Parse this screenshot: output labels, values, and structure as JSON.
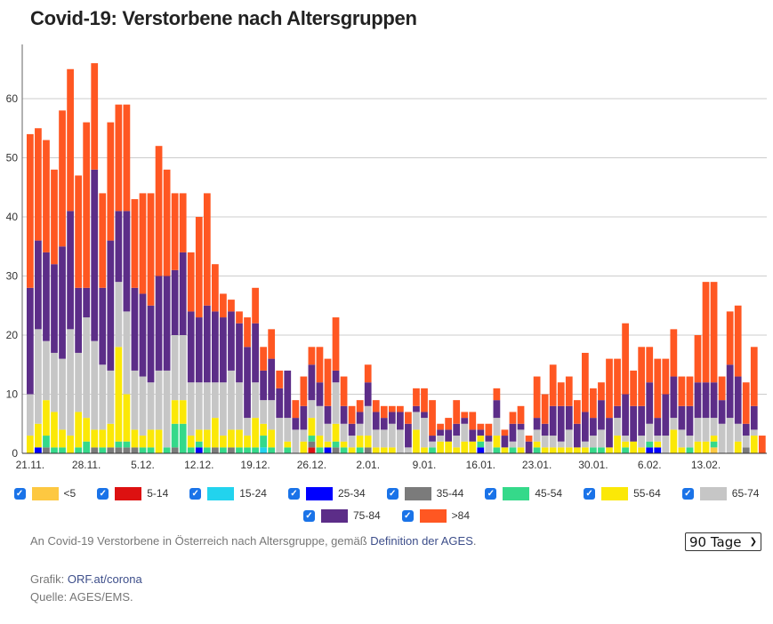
{
  "title": "Covid-19: Verstorbene nach Altersgruppen",
  "chart_data": {
    "type": "bar",
    "stacked": true,
    "title": "Covid-19: Verstorbene nach Altersgruppen",
    "xlabel": "",
    "ylabel": "",
    "ylim": [
      0,
      68
    ],
    "yticks": [
      0,
      10,
      20,
      30,
      40,
      50,
      60
    ],
    "grid": true,
    "legend_position": "bottom",
    "x_tick_labels": [
      "21.11.",
      "28.11.",
      "5.12.",
      "12.12.",
      "19.12.",
      "26.12.",
      "2.01.",
      "9.01.",
      "16.01.",
      "23.01.",
      "30.01.",
      "6.02.",
      "13.02."
    ],
    "x_tick_every": 7,
    "series": [
      {
        "name": "<5",
        "color": "#fdc841"
      },
      {
        "name": "5-14",
        "color": "#dd1111"
      },
      {
        "name": "15-24",
        "color": "#22d3ee"
      },
      {
        "name": "25-34",
        "color": "#0000ff"
      },
      {
        "name": "35-44",
        "color": "#7b7b7b"
      },
      {
        "name": "45-54",
        "color": "#35d98a"
      },
      {
        "name": "55-64",
        "color": "#fbe807"
      },
      {
        "name": "65-74",
        "color": "#c6c6c6"
      },
      {
        "name": "75-84",
        "color": "#5c2d88"
      },
      {
        "name": ">84",
        "color": "#ff5722"
      }
    ],
    "days": [
      [
        0,
        0,
        0,
        0,
        0,
        0,
        3,
        7,
        18,
        26
      ],
      [
        0,
        0,
        0,
        1,
        0,
        0,
        4,
        16,
        15,
        19
      ],
      [
        0,
        0,
        0,
        0,
        1,
        2,
        6,
        10,
        15,
        19
      ],
      [
        0,
        0,
        0,
        0,
        0,
        1,
        6,
        10,
        15,
        16
      ],
      [
        0,
        0,
        0,
        0,
        0,
        1,
        3,
        12,
        19,
        23
      ],
      [
        0,
        0,
        0,
        0,
        0,
        0,
        3,
        18,
        20,
        24
      ],
      [
        0,
        0,
        0,
        0,
        0,
        1,
        6,
        10,
        11,
        19
      ],
      [
        0,
        0,
        0,
        0,
        0,
        2,
        4,
        17,
        5,
        28
      ],
      [
        0,
        0,
        0,
        0,
        1,
        0,
        3,
        15,
        29,
        18
      ],
      [
        0,
        0,
        0,
        0,
        0,
        1,
        3,
        11,
        13,
        16
      ],
      [
        0,
        0,
        0,
        0,
        1,
        0,
        4,
        9,
        22,
        20
      ],
      [
        0,
        0,
        0,
        0,
        1,
        1,
        16,
        11,
        12,
        18
      ],
      [
        0,
        0,
        0,
        0,
        1,
        1,
        8,
        14,
        17,
        18
      ],
      [
        0,
        0,
        0,
        0,
        1,
        0,
        3,
        10,
        14,
        15
      ],
      [
        0,
        0,
        0,
        0,
        0,
        1,
        2,
        10,
        14,
        17
      ],
      [
        0,
        0,
        0,
        0,
        0,
        1,
        3,
        8,
        13,
        19
      ],
      [
        0,
        0,
        0,
        0,
        0,
        0,
        4,
        10,
        16,
        22
      ],
      [
        0,
        0,
        0,
        0,
        0,
        1,
        0,
        13,
        16,
        18
      ],
      [
        0,
        0,
        0,
        0,
        1,
        4,
        4,
        11,
        11,
        13
      ],
      [
        0,
        0,
        0,
        0,
        0,
        5,
        4,
        11,
        14,
        10
      ],
      [
        0,
        0,
        0,
        0,
        0,
        1,
        2,
        9,
        12,
        10
      ],
      [
        0,
        0,
        0,
        1,
        0,
        1,
        2,
        8,
        11,
        17
      ],
      [
        0,
        0,
        0,
        0,
        0,
        1,
        3,
        8,
        13,
        19
      ],
      [
        0,
        0,
        0,
        0,
        1,
        0,
        5,
        6,
        12,
        8
      ],
      [
        0,
        0,
        0,
        0,
        0,
        1,
        2,
        9,
        11,
        4
      ],
      [
        0,
        0,
        0,
        0,
        1,
        0,
        3,
        10,
        10,
        2
      ],
      [
        0,
        0,
        0,
        0,
        0,
        1,
        3,
        8,
        10,
        2
      ],
      [
        0,
        0,
        0,
        0,
        0,
        1,
        2,
        3,
        12,
        5
      ],
      [
        0,
        0,
        0,
        0,
        0,
        1,
        5,
        6,
        10,
        6
      ],
      [
        0,
        0,
        1,
        0,
        0,
        2,
        2,
        4,
        5,
        4
      ],
      [
        0,
        0,
        0,
        0,
        0,
        1,
        3,
        5,
        7,
        5
      ],
      [
        0,
        0,
        0,
        0,
        0,
        0,
        0,
        6,
        5,
        3
      ],
      [
        0,
        0,
        0,
        0,
        0,
        1,
        1,
        4,
        8,
        0
      ],
      [
        0,
        0,
        0,
        0,
        0,
        0,
        0,
        4,
        2,
        3
      ],
      [
        0,
        0,
        0,
        0,
        0,
        0,
        2,
        2,
        4,
        5
      ],
      [
        0,
        1,
        0,
        0,
        1,
        1,
        3,
        3,
        6,
        3
      ],
      [
        0,
        0,
        0,
        0,
        0,
        1,
        2,
        5,
        4,
        6
      ],
      [
        0,
        0,
        0,
        1,
        0,
        0,
        1,
        3,
        3,
        8
      ],
      [
        0,
        0,
        0,
        0,
        1,
        1,
        3,
        7,
        2,
        9
      ],
      [
        0,
        0,
        0,
        0,
        0,
        1,
        1,
        3,
        3,
        5
      ],
      [
        0,
        0,
        0,
        0,
        0,
        0,
        1,
        2,
        2,
        3
      ],
      [
        0,
        0,
        0,
        0,
        0,
        1,
        2,
        2,
        2,
        2
      ],
      [
        0,
        0,
        0,
        0,
        1,
        0,
        2,
        5,
        4,
        3
      ],
      [
        0,
        0,
        0,
        0,
        0,
        0,
        1,
        3,
        3,
        2
      ],
      [
        0,
        0,
        0,
        0,
        0,
        0,
        1,
        3,
        2,
        2
      ],
      [
        0,
        0,
        0,
        0,
        0,
        0,
        1,
        4,
        2,
        1
      ],
      [
        0,
        0,
        0,
        0,
        0,
        0,
        0,
        4,
        3,
        1
      ],
      [
        0,
        0,
        0,
        0,
        0,
        0,
        0,
        1,
        4,
        2
      ],
      [
        0,
        0,
        0,
        0,
        0,
        0,
        4,
        3,
        1,
        3
      ],
      [
        0,
        0,
        0,
        0,
        0,
        0,
        1,
        5,
        1,
        4
      ],
      [
        0,
        0,
        0,
        0,
        0,
        1,
        0,
        1,
        1,
        6
      ],
      [
        0,
        0,
        0,
        0,
        0,
        0,
        2,
        1,
        1,
        1
      ],
      [
        0,
        0,
        0,
        0,
        0,
        0,
        2,
        0,
        2,
        2
      ],
      [
        0,
        0,
        0,
        0,
        0,
        0,
        1,
        2,
        2,
        4
      ],
      [
        0,
        0,
        0,
        0,
        0,
        0,
        2,
        3,
        1,
        1
      ],
      [
        0,
        0,
        0,
        0,
        0,
        0,
        2,
        0,
        2,
        3
      ],
      [
        0,
        0,
        0,
        1,
        0,
        1,
        1,
        0,
        1,
        1
      ],
      [
        0,
        0,
        0,
        0,
        0,
        0,
        0,
        2,
        1,
        2
      ],
      [
        0,
        0,
        0,
        0,
        0,
        1,
        2,
        3,
        3,
        2
      ],
      [
        0,
        0,
        0,
        0,
        0,
        0,
        1,
        0,
        2,
        1
      ],
      [
        0,
        0,
        0,
        0,
        0,
        1,
        0,
        1,
        3,
        2
      ],
      [
        0,
        0,
        0,
        0,
        0,
        0,
        1,
        3,
        1,
        3
      ],
      [
        0,
        0,
        0,
        0,
        0,
        0,
        0,
        0,
        2,
        1
      ],
      [
        0,
        0,
        0,
        0,
        0,
        1,
        1,
        2,
        2,
        7
      ],
      [
        0,
        0,
        0,
        0,
        0,
        0,
        1,
        2,
        2,
        5
      ],
      [
        0,
        0,
        0,
        0,
        0,
        0,
        1,
        2,
        5,
        7
      ],
      [
        0,
        0,
        0,
        0,
        0,
        0,
        1,
        1,
        6,
        4
      ],
      [
        0,
        0,
        0,
        0,
        0,
        0,
        1,
        3,
        4,
        5
      ],
      [
        0,
        0,
        0,
        0,
        0,
        0,
        1,
        0,
        4,
        4
      ],
      [
        0,
        0,
        0,
        0,
        0,
        0,
        1,
        1,
        5,
        10
      ],
      [
        0,
        0,
        0,
        0,
        0,
        1,
        0,
        2,
        3,
        5
      ],
      [
        0,
        0,
        0,
        0,
        0,
        1,
        0,
        3,
        5,
        3
      ],
      [
        0,
        0,
        0,
        0,
        0,
        0,
        1,
        0,
        5,
        10
      ],
      [
        0,
        0,
        0,
        0,
        0,
        0,
        3,
        3,
        2,
        8
      ],
      [
        0,
        0,
        0,
        0,
        0,
        1,
        1,
        1,
        7,
        12
      ],
      [
        0,
        0,
        0,
        0,
        0,
        0,
        2,
        0,
        6,
        6
      ],
      [
        0,
        0,
        0,
        0,
        0,
        0,
        1,
        2,
        5,
        10
      ],
      [
        0,
        0,
        0,
        1,
        0,
        1,
        0,
        3,
        7,
        6
      ],
      [
        0,
        0,
        0,
        1,
        0,
        0,
        1,
        1,
        3,
        10
      ],
      [
        0,
        0,
        0,
        0,
        0,
        0,
        0,
        3,
        7,
        6
      ],
      [
        0,
        0,
        0,
        0,
        0,
        0,
        4,
        2,
        7,
        8
      ],
      [
        0,
        0,
        0,
        0,
        0,
        0,
        1,
        3,
        4,
        5
      ],
      [
        0,
        0,
        0,
        0,
        0,
        1,
        0,
        2,
        5,
        5
      ],
      [
        0,
        0,
        0,
        0,
        0,
        0,
        2,
        4,
        6,
        8
      ],
      [
        0,
        0,
        0,
        0,
        0,
        0,
        2,
        4,
        6,
        17
      ],
      [
        1,
        0,
        0,
        0,
        0,
        1,
        1,
        3,
        6,
        17
      ],
      [
        0,
        0,
        0,
        0,
        0,
        0,
        0,
        5,
        4,
        4
      ],
      [
        0,
        0,
        0,
        0,
        0,
        0,
        0,
        6,
        9,
        9
      ],
      [
        0,
        0,
        0,
        0,
        0,
        0,
        2,
        3,
        8,
        12
      ],
      [
        0,
        0,
        0,
        0,
        1,
        0,
        0,
        2,
        2,
        7
      ],
      [
        0,
        0,
        0,
        0,
        0,
        0,
        3,
        1,
        4,
        10
      ],
      [
        0,
        0,
        0,
        0,
        0,
        0,
        0,
        0,
        0,
        3
      ]
    ]
  },
  "legend": [
    {
      "label": "<5",
      "checked": true
    },
    {
      "label": "5-14",
      "checked": true
    },
    {
      "label": "15-24",
      "checked": true
    },
    {
      "label": "25-34",
      "checked": true
    },
    {
      "label": "35-44",
      "checked": true
    },
    {
      "label": "45-54",
      "checked": true
    },
    {
      "label": "55-64",
      "checked": true
    },
    {
      "label": "65-74",
      "checked": true
    },
    {
      "label": "75-84",
      "checked": true
    },
    {
      "label": ">84",
      "checked": true
    }
  ],
  "description": {
    "text": "An Covid-19 Verstorbene in Österreich nach Altersgruppe, gemäß ",
    "link": "Definition der AGES",
    "suffix": "."
  },
  "range_select": {
    "value": "90 Tage"
  },
  "credits": {
    "grafik_label": "Grafik: ",
    "grafik_link": "ORF.at/corona",
    "quelle": "Quelle: AGES/EMS."
  },
  "checkbox_glyph": "✓"
}
